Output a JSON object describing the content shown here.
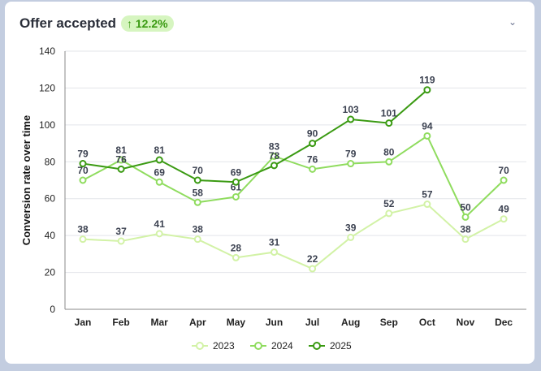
{
  "header": {
    "title": "Offer accepted",
    "badge": "↑ 12.2%",
    "chevron": "chevron-down-icon"
  },
  "chart_data": {
    "type": "line",
    "title": "Offer accepted",
    "xlabel": "",
    "ylabel": "Conversion rate over time",
    "ylim": [
      0,
      140
    ],
    "yticks": [
      0,
      20,
      40,
      60,
      80,
      100,
      120,
      140
    ],
    "categories": [
      "Jan",
      "Feb",
      "Mar",
      "Apr",
      "May",
      "Jun",
      "Jul",
      "Aug",
      "Sep",
      "Oct",
      "Nov",
      "Dec"
    ],
    "series": [
      {
        "name": "2023",
        "color": "#d2f2a6",
        "values": [
          38,
          37,
          41,
          38,
          28,
          31,
          22,
          39,
          52,
          57,
          38,
          49
        ]
      },
      {
        "name": "2024",
        "color": "#8fdc5e",
        "values": [
          70,
          81,
          69,
          58,
          61,
          83,
          76,
          79,
          80,
          94,
          50,
          70
        ]
      },
      {
        "name": "2025",
        "color": "#3a9a12",
        "values": [
          79,
          76,
          81,
          70,
          69,
          78,
          90,
          103,
          101,
          119,
          null,
          null
        ]
      }
    ],
    "legend": "bottom",
    "grid": true
  }
}
